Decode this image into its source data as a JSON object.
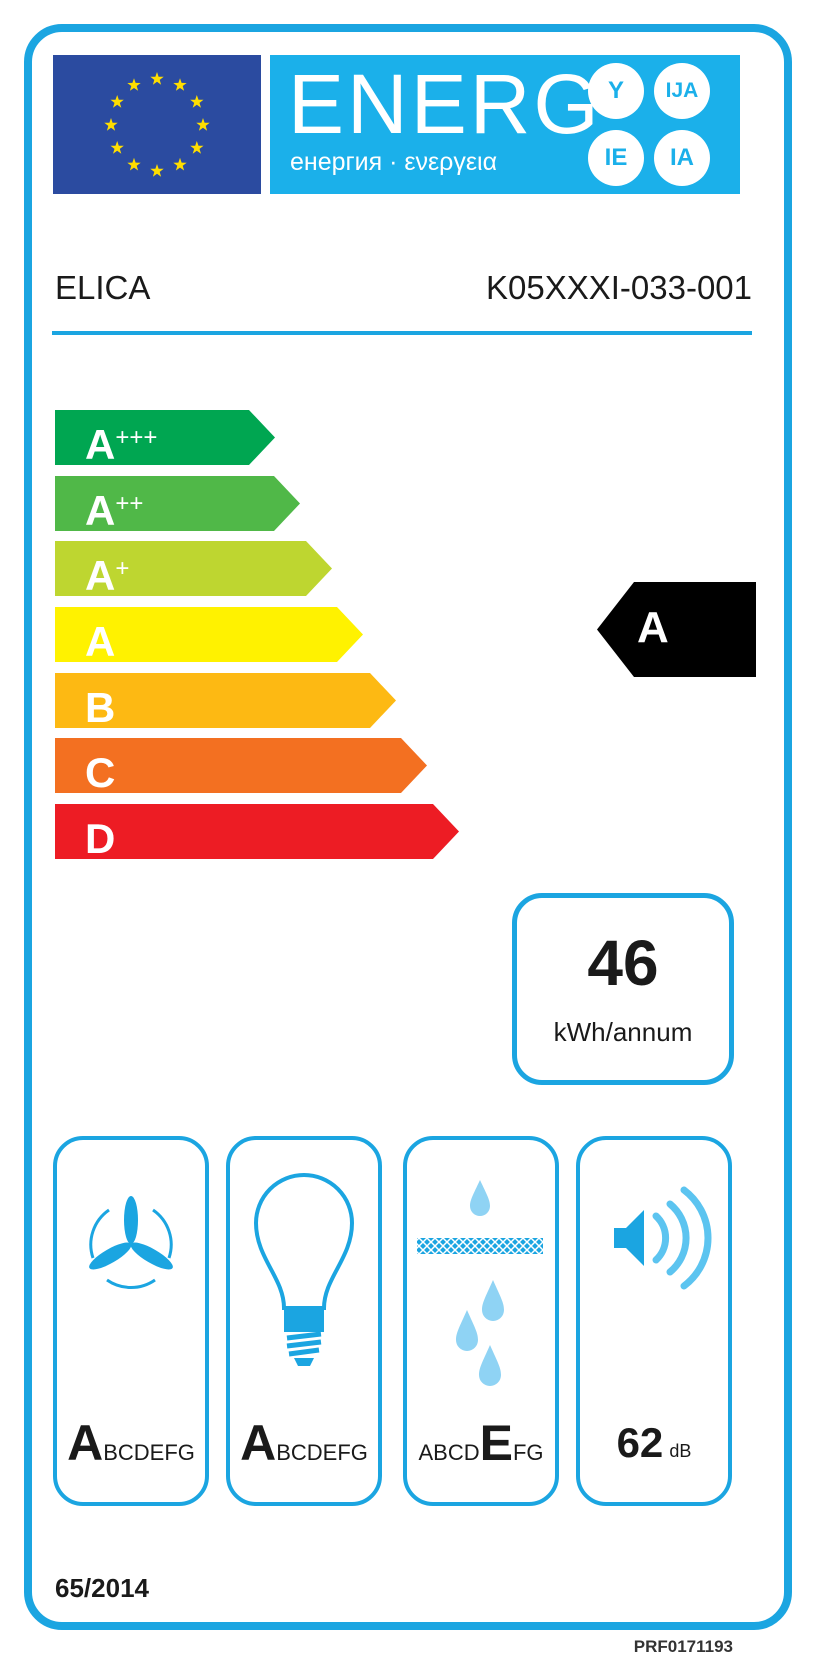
{
  "header": {
    "energy_word": "ENERG",
    "energy_subtitle": "енергия · ενεργεια",
    "language_suffixes": [
      "Y",
      "IJA",
      "IE",
      "IA"
    ],
    "flag_icon": "eu-flag-icon",
    "flag_stars": 12
  },
  "product": {
    "brand": "ELICA",
    "model": "K05XXXI-033-001"
  },
  "energy_scale": {
    "classes": [
      {
        "base": "A",
        "plus": "+++",
        "color": "#00a651"
      },
      {
        "base": "A",
        "plus": "++",
        "color": "#50b848"
      },
      {
        "base": "A",
        "plus": "+",
        "color": "#bed630"
      },
      {
        "base": "A",
        "plus": "",
        "color": "#fff200"
      },
      {
        "base": "B",
        "plus": "",
        "color": "#fdb913"
      },
      {
        "base": "C",
        "plus": "",
        "color": "#f37021"
      },
      {
        "base": "D",
        "plus": "",
        "color": "#ed1c24"
      }
    ],
    "rating": "A"
  },
  "consumption": {
    "value": "46",
    "unit": "kWh/annum"
  },
  "indicators": [
    {
      "icon": "fan-icon",
      "highlight": "A",
      "after": "BCDEFG",
      "before": ""
    },
    {
      "icon": "light-bulb-icon",
      "highlight": "A",
      "after": "BCDEFG",
      "before": ""
    },
    {
      "icon": "grease-filter-icon",
      "highlight": "E",
      "after": "FG",
      "before": "ABCD"
    },
    {
      "icon": "speaker-noise-icon",
      "value": "62",
      "unit": "dB"
    }
  ],
  "footer": {
    "regulation": "65/2014",
    "code": "PRF0171193"
  },
  "colors": {
    "frame": "#1ba5e1",
    "energ_box": "#1bb0ea",
    "flag": "#2b4ba0",
    "star": "#ffde00"
  }
}
